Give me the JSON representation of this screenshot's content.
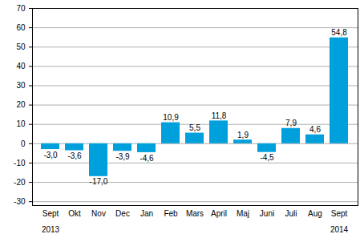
{
  "chart_data": {
    "type": "bar",
    "categories": [
      "Sept",
      "Okt",
      "Nov",
      "Dec",
      "Jan",
      "Feb",
      "Mars",
      "April",
      "Maj",
      "Juni",
      "Juli",
      "Aug",
      "Sept"
    ],
    "values": [
      -3.0,
      -3.6,
      -17.0,
      -3.9,
      -4.6,
      10.9,
      5.5,
      11.8,
      1.9,
      -4.5,
      7.9,
      4.6,
      54.8
    ],
    "value_labels": [
      "-3,0",
      "-3,6",
      "-17,0",
      "-3,9",
      "-4,6",
      "10,9",
      "5,5",
      "11,8",
      "1,9",
      "-4,5",
      "7,9",
      "4,6",
      "54,8"
    ],
    "data_labels": true,
    "color": "#00a0dc",
    "ylim": [
      -32,
      70
    ],
    "yticks": [
      -30,
      -20,
      -10,
      0,
      10,
      20,
      30,
      40,
      50,
      60,
      70
    ],
    "grid": true,
    "annotations": [
      {
        "text": "2013",
        "at": 0
      },
      {
        "text": "2014",
        "at": 12
      }
    ]
  }
}
